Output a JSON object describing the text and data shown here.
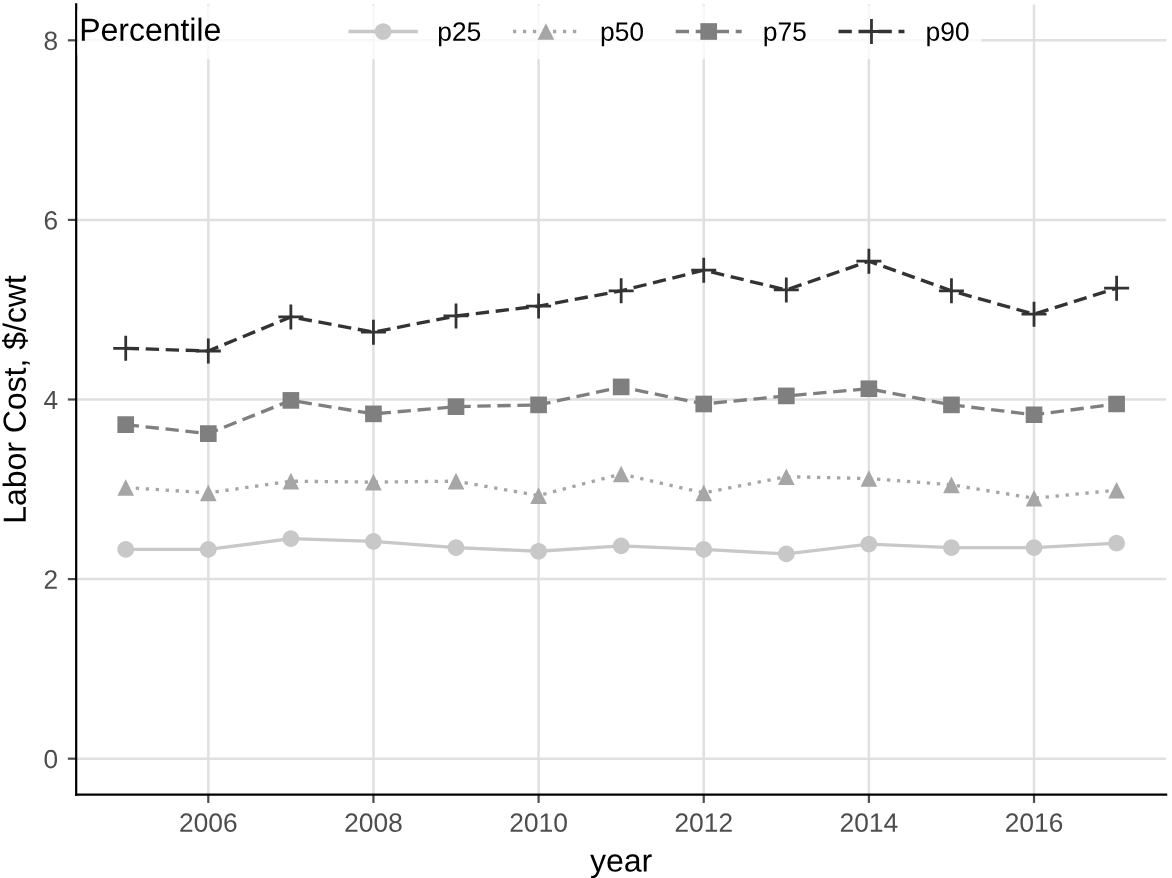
{
  "chart_data": {
    "type": "line",
    "xlabel": "year",
    "ylabel": "Labor Cost, $/cwt",
    "legend_title": "Percentile",
    "legend": "top left",
    "x": [
      2005,
      2006,
      2007,
      2008,
      2009,
      2010,
      2011,
      2012,
      2013,
      2014,
      2015,
      2016,
      2017
    ],
    "series": [
      {
        "name": "p25",
        "color": "#c8c8c8",
        "marker": "circle",
        "line_style": "solid",
        "values": [
          2.33,
          2.33,
          2.45,
          2.42,
          2.35,
          2.31,
          2.37,
          2.33,
          2.28,
          2.39,
          2.35,
          2.35,
          2.4
        ]
      },
      {
        "name": "p50",
        "color": "#a6a6a6",
        "marker": "triangle",
        "line_style": "dotted",
        "values": [
          3.02,
          2.96,
          3.09,
          3.08,
          3.09,
          2.93,
          3.17,
          2.96,
          3.14,
          3.12,
          3.05,
          2.9,
          2.99
        ]
      },
      {
        "name": "p75",
        "color": "#7f7f7f",
        "marker": "square",
        "line_style": "dashed",
        "values": [
          3.72,
          3.62,
          3.99,
          3.84,
          3.92,
          3.94,
          4.14,
          3.95,
          4.04,
          4.12,
          3.94,
          3.83,
          3.95
        ]
      },
      {
        "name": "p90",
        "color": "#333333",
        "marker": "cross",
        "line_style": "dashed",
        "values": [
          4.57,
          4.54,
          4.92,
          4.75,
          4.93,
          5.04,
          5.21,
          5.44,
          5.22,
          5.54,
          5.21,
          4.95,
          5.24
        ]
      }
    ],
    "xlim": [
      2004.4,
      2017.6
    ],
    "xticks": [
      2006,
      2008,
      2010,
      2012,
      2014,
      2016
    ],
    "ylim": [
      -0.4,
      8.4
    ],
    "yticks": [
      0,
      2,
      4,
      6,
      8
    ],
    "grid": true
  }
}
